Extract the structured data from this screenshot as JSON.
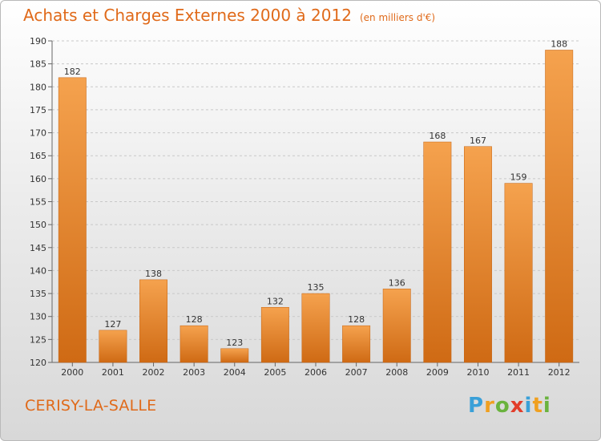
{
  "chart_data": {
    "type": "bar",
    "title": "Achats et Charges Externes 2000 à 2012",
    "subtitle": "(en milliers d'€)",
    "categories": [
      "2000",
      "2001",
      "2002",
      "2003",
      "2004",
      "2005",
      "2006",
      "2007",
      "2008",
      "2009",
      "2010",
      "2011",
      "2012"
    ],
    "values": [
      182,
      127,
      138,
      128,
      123,
      132,
      135,
      128,
      136,
      168,
      167,
      159,
      188
    ],
    "ylim": [
      120,
      190
    ],
    "yticks": [
      120,
      125,
      130,
      135,
      140,
      145,
      150,
      155,
      160,
      165,
      170,
      175,
      180,
      185,
      190
    ],
    "grid": true,
    "bar_color_top": "#f5a24e",
    "bar_color_bottom": "#cf6a14"
  },
  "footer": {
    "location": "CERISY-LA-SALLE",
    "logo_letters": [
      "P",
      "r",
      "o",
      "x",
      "i",
      "t",
      "i"
    ],
    "logo_colors": [
      "#3aa0d8",
      "#f0a020",
      "#6ab33e",
      "#e23d2a",
      "#3aa0d8",
      "#f0a020",
      "#6ab33e"
    ]
  }
}
